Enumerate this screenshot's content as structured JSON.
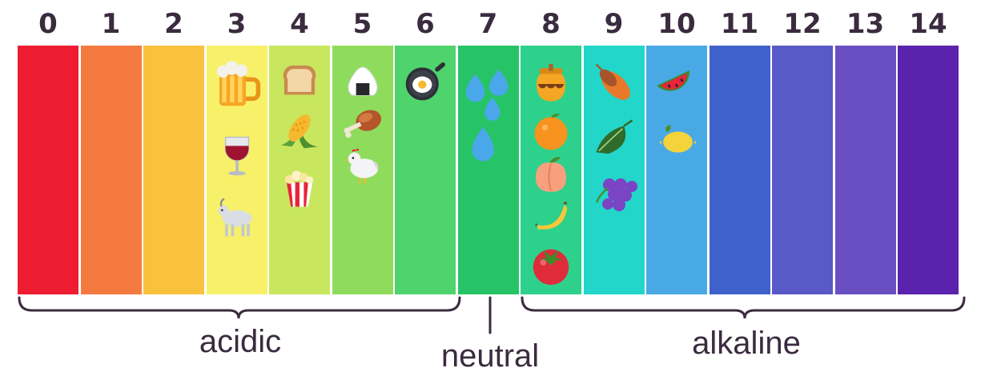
{
  "scale": [
    {
      "label": "0",
      "color": "#ee1c31",
      "foods": []
    },
    {
      "label": "1",
      "color": "#f47a40",
      "foods": []
    },
    {
      "label": "2",
      "color": "#fac23c",
      "foods": []
    },
    {
      "label": "3",
      "color": "#f7f169",
      "foods": [
        "beer-mug",
        "wine-glass",
        "goat"
      ]
    },
    {
      "label": "4",
      "color": "#c8e75e",
      "foods": [
        "bread",
        "corn",
        "popcorn"
      ]
    },
    {
      "label": "5",
      "color": "#8fdc5c",
      "foods": [
        "rice-ball",
        "poultry-leg",
        "chicken"
      ]
    },
    {
      "label": "6",
      "color": "#4fd36d",
      "foods": [
        "fried-egg-pan"
      ]
    },
    {
      "label": "7",
      "color": "#26c466",
      "foods": [
        "water-drops"
      ]
    },
    {
      "label": "8",
      "color": "#2dd18c",
      "foods": [
        "honey-pot",
        "orange",
        "peach",
        "banana",
        "tomato"
      ]
    },
    {
      "label": "9",
      "color": "#22d6c9",
      "foods": [
        "sweet-potato",
        "leafy-green",
        "grapes"
      ]
    },
    {
      "label": "10",
      "color": "#49a9e4",
      "foods": [
        "watermelon",
        "lemon"
      ]
    },
    {
      "label": "11",
      "color": "#3f61cc",
      "foods": []
    },
    {
      "label": "12",
      "color": "#5959c8",
      "foods": []
    },
    {
      "label": "13",
      "color": "#6a4fc3",
      "foods": []
    },
    {
      "label": "14",
      "color": "#5a22ad",
      "foods": []
    }
  ],
  "regions": {
    "acidic": "acidic",
    "neutral": "neutral",
    "alkaline": "alkaline"
  }
}
